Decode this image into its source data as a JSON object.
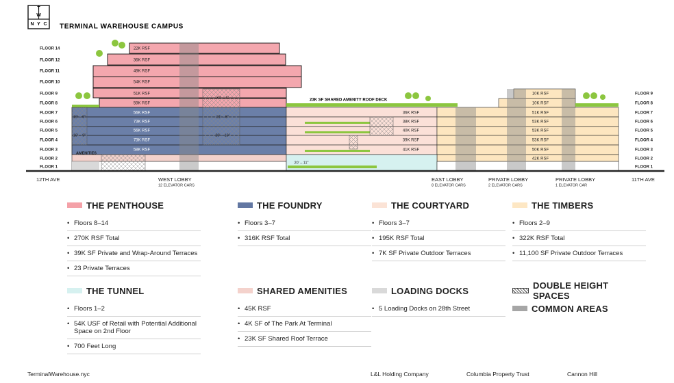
{
  "header": {
    "logo": [
      "T",
      "W",
      "N",
      "Y",
      "C"
    ],
    "title": "TERMINAL WAREHOUSE CAMPUS"
  },
  "floors_left": [
    "FLOOR 14",
    "FLOOR 12",
    "FLOOR 11",
    "FLOOR 10",
    "FLOOR 9",
    "FLOOR 8",
    "FLOOR 7",
    "FLOOR 6",
    "FLOOR 5",
    "FLOOR 4",
    "FLOOR 3",
    "FLOOR 2",
    "FLOOR 1"
  ],
  "floors_right": [
    "FLOOR 9",
    "FLOOR 8",
    "FLOOR 7",
    "FLOOR 6",
    "FLOOR 5",
    "FLOOR 4",
    "FLOOR 3",
    "FLOOR 2",
    "FLOOR 1"
  ],
  "building": {
    "penthouse": [
      "22K RSF",
      "36K RSF",
      "49K RSF",
      "54K RSF",
      "51K RSF",
      "59K RSF"
    ],
    "foundry": [
      "56K RSF",
      "73K RSF",
      "56K RSF",
      "73K RSF",
      "58K RSF"
    ],
    "courtyard": [
      "36K RSF",
      "38K RSF",
      "40K RSF",
      "39K RSF",
      "41K RSF"
    ],
    "timbers": [
      "10K RSF",
      "10K RSF",
      "51K RSF",
      "53K RSF",
      "53K RSF",
      "53K RSF",
      "50K RSF",
      "42K RSF"
    ],
    "dimensions": [
      "32' – 1\"",
      "21' – 5\"",
      "20' – 10\"",
      "19' – 9\"",
      "19' – 9\"",
      "20' – 11\""
    ],
    "amenities": "AMENITIES",
    "roof_deck": "23K SF SHARED AMENITY ROOF DECK"
  },
  "streets": [
    {
      "name": "12TH AVE"
    },
    {
      "name": "WEST LOBBY",
      "note": "12 ELEVATOR CARS"
    },
    {
      "name": "EAST LOBBY",
      "note": "8 ELEVATOR CARS"
    },
    {
      "name": "PRIVATE LOBBY",
      "note": "2 ELEVATOR CARS"
    },
    {
      "name": "PRIVATE LOBBY",
      "note": "1 ELEVATOR CAR"
    },
    {
      "name": "11TH AVE"
    }
  ],
  "legend": [
    {
      "title": "THE PENTHOUSE",
      "items": [
        "Floors 8–14",
        "270K RSF Total",
        "39K SF Private and Wrap-Around Terraces",
        "23 Private Terraces"
      ]
    },
    {
      "title": "THE FOUNDRY",
      "items": [
        "Floors 3–7",
        "316K RSF Total"
      ]
    },
    {
      "title": "THE COURTYARD",
      "items": [
        "Floors 3–7",
        "195K RSF Total",
        "7K SF Private Outdoor Terraces"
      ]
    },
    {
      "title": "THE TIMBERS",
      "items": [
        "Floors 2–9",
        "322K RSF Total",
        "11,100 SF Private Outdoor Terraces"
      ]
    },
    {
      "title": "THE TUNNEL",
      "items": [
        "Floors 1–2",
        "54K USF of Retail with Potential Additional Space on 2nd Floor",
        "700 Feet Long"
      ]
    },
    {
      "title": "SHARED AMENITIES",
      "items": [
        "45K RSF",
        "4K SF of The Park At Terminal",
        "23K SF Shared Roof Terrace"
      ]
    },
    {
      "title": "LOADING DOCKS",
      "items": [
        "5 Loading Docks on 28th Street"
      ]
    },
    {
      "title": "DOUBLE HEIGHT SPACES"
    },
    {
      "title": "COMMON AREAS"
    }
  ],
  "footer": [
    "TerminalWarehouse.nyc",
    "L&L Holding Company",
    "Columbia Property Trust",
    "Cannon Hill"
  ]
}
